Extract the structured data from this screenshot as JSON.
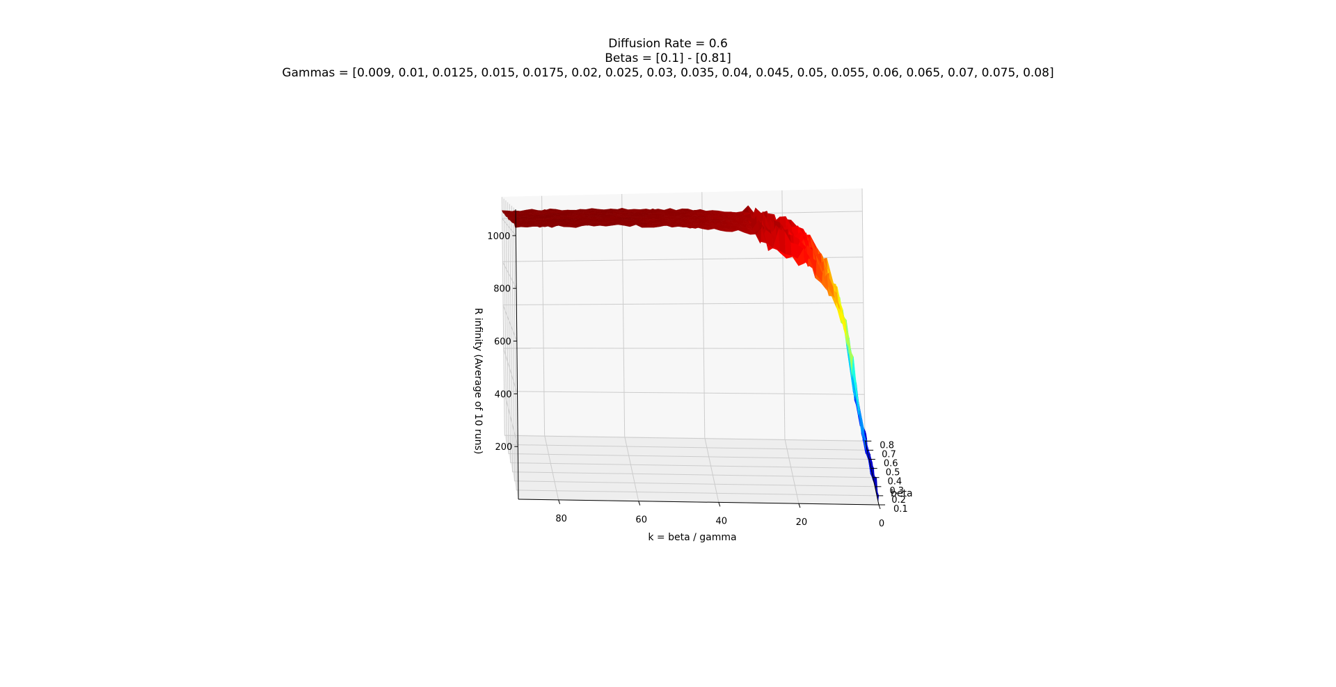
{
  "chart_data": {
    "type": "surface3d",
    "title_lines": [
      "Diffusion Rate = 0.6",
      "Betas = [0.1] - [0.81]",
      "Gammas = [0.009, 0.01, 0.0125, 0.015, 0.0175, 0.02, 0.025, 0.03, 0.035, 0.04, 0.045, 0.05, 0.055, 0.06, 0.065, 0.07, 0.075, 0.08]"
    ],
    "xlabel": "k = beta / gamma",
    "ylabel": "beta",
    "zlabel": "R infinity (Average of 10 runs)",
    "x_ticks": [
      "80",
      "60",
      "40",
      "20",
      "0"
    ],
    "y_ticks": [
      "0.1",
      "0.2",
      "0.3",
      "0.4",
      "0.5",
      "0.6",
      "0.7",
      "0.8"
    ],
    "z_ticks": [
      "200",
      "400",
      "600",
      "800",
      "1000"
    ],
    "xlim": [
      0,
      90
    ],
    "ylim": [
      0.1,
      0.81
    ],
    "zlim": [
      0,
      1100
    ],
    "colormap": "jet",
    "betas": [
      0.1,
      0.81
    ],
    "gammas": [
      0.009,
      0.01,
      0.0125,
      0.015,
      0.0175,
      0.02,
      0.025,
      0.03,
      0.035,
      0.04,
      0.045,
      0.05,
      0.055,
      0.06,
      0.065,
      0.07,
      0.075,
      0.08
    ],
    "grid": true,
    "surface_profile": {
      "k": [
        0,
        1,
        2,
        3,
        4,
        5,
        6,
        8,
        10,
        12,
        15,
        20,
        25,
        30,
        40,
        50,
        60,
        70,
        80,
        90
      ],
      "r_infinity": [
        20,
        70,
        140,
        230,
        340,
        460,
        560,
        680,
        760,
        820,
        880,
        940,
        975,
        1000,
        1015,
        1025,
        1030,
        1032,
        1034,
        1035
      ]
    }
  }
}
